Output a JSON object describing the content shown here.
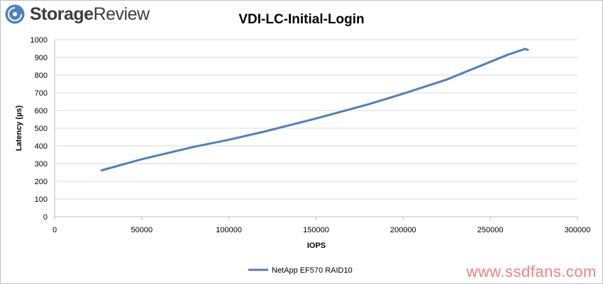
{
  "brand": {
    "name_bold": "Storage",
    "name_rest": "Review",
    "logo_icon": "storagereview-logo-icon",
    "logo_color": "#4e82c4"
  },
  "watermark": "www.ssdfans.com",
  "chart_data": {
    "type": "line",
    "title": "VDI-LC-Initial-Login",
    "xlabel": "IOPS",
    "ylabel": "Latency (µs)",
    "xlim": [
      0,
      300000
    ],
    "ylim": [
      0,
      1000
    ],
    "xticks": [
      0,
      50000,
      100000,
      150000,
      200000,
      250000,
      300000
    ],
    "yticks": [
      0,
      100,
      200,
      300,
      400,
      500,
      600,
      700,
      800,
      900,
      1000
    ],
    "grid": true,
    "legend": "bottom",
    "series": [
      {
        "name": "NetApp EF570 RAID10",
        "color": "#4f81bd",
        "x": [
          27000,
          50000,
          80000,
          100000,
          120000,
          150000,
          180000,
          200000,
          225000,
          245000,
          260000,
          270000,
          271500
        ],
        "y": [
          262,
          325,
          395,
          435,
          480,
          555,
          635,
          695,
          775,
          855,
          915,
          948,
          942
        ]
      }
    ]
  }
}
